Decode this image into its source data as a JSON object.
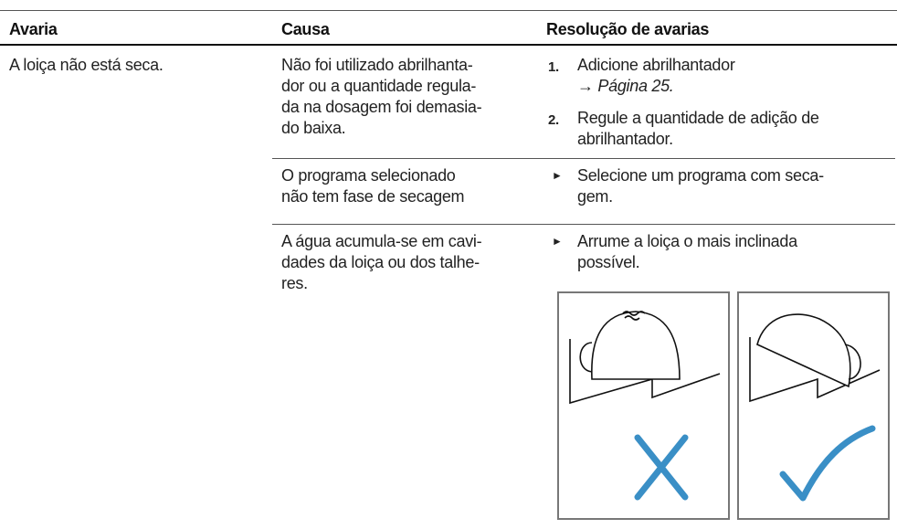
{
  "table": {
    "header": [
      "Avaria",
      "Causa",
      "Resolução de avarias"
    ],
    "rows": [
      {
        "problem": [
          "A loiça não está seca."
        ],
        "causes": [
          {
            "cause": [
              "Não foi utilizado abrilhanta-",
              "dor ou a quantidade regula-",
              "da na dosagem foi demasia-",
              "do baixa."
            ],
            "remedy": [
              {
                "marker": "1.",
                "lines": [
                  "Adicione abrilhantador"
                ],
                "link": "Página 25."
              },
              {
                "marker": "2.",
                "lines": [
                  "Regule a quantidade de adição de",
                  "abrilhantador."
                ]
              }
            ]
          },
          {
            "cause": [
              "O programa selecionado",
              "não tem fase de secagem"
            ],
            "remedy": [
              {
                "lines": [
                  "Selecione um programa com seca-",
                  "gem."
                ]
              }
            ]
          },
          {
            "cause": [
              "A água acumula-se em cavi-",
              "dades da loiça ou dos talhe-",
              "res."
            ],
            "remedy": [
              {
                "lines": [
                  "Arrume a loiça o mais inclinada",
                  "possível."
                ]
              }
            ]
          }
        ]
      }
    ]
  }
}
